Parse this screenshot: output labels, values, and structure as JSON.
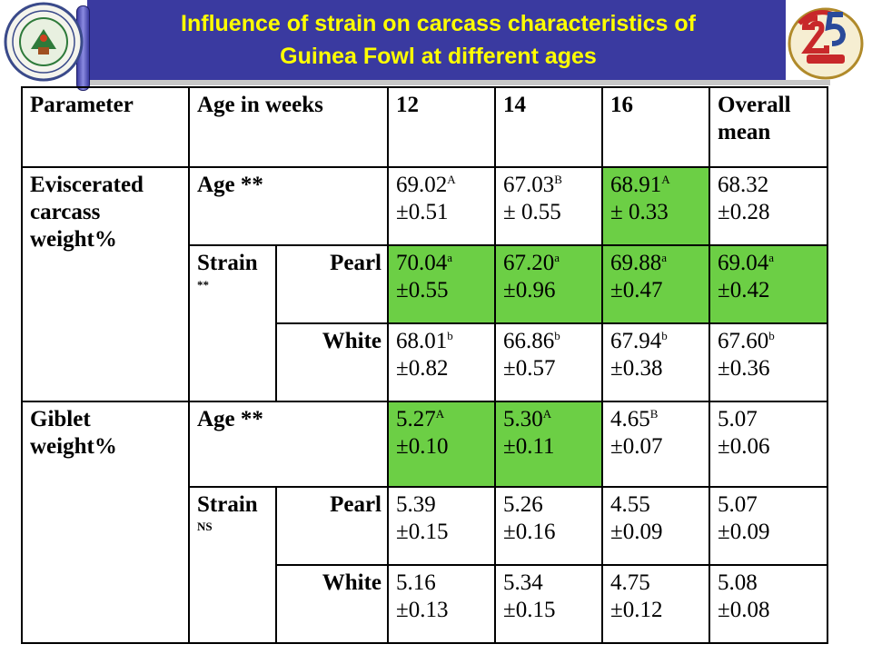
{
  "title": {
    "line1": "Influence of strain on carcass characteristics of",
    "line2": "Guinea Fowl at different ages"
  },
  "colors": {
    "header": "#3a3aa0",
    "title_text": "#ffff00",
    "highlight": "#6ccf45"
  },
  "logos": {
    "left": "university-seal",
    "right": "silver-jubilee-25-logo"
  },
  "table": {
    "headers": [
      "Parameter",
      "Age in weeks",
      "12",
      "14",
      "16",
      "Overall mean"
    ],
    "sections": [
      {
        "parameter": "Eviscerated carcass weight%",
        "age_row": {
          "label": "Age **",
          "cells": [
            {
              "v": "69.02",
              "sup": "A",
              "pm": "±0.51"
            },
            {
              "v": "67.03",
              "sup": "B",
              "pm": "± 0.55"
            },
            {
              "v": "68.91",
              "sup": "A",
              "pm": "± 0.33"
            },
            {
              "v": "68.32",
              "sup": "",
              "pm": "±0.28"
            }
          ]
        },
        "strain_label": "Strain",
        "strain_sig": "**",
        "strains": [
          {
            "name": "Pearl",
            "cells": [
              {
                "v": "70.04",
                "sup": "a",
                "pm": "±0.55"
              },
              {
                "v": "67.20",
                "sup": "a",
                "pm": "±0.96"
              },
              {
                "v": "69.88",
                "sup": "a",
                "pm": "±0.47"
              },
              {
                "v": "69.04",
                "sup": "a",
                "pm": "±0.42"
              }
            ]
          },
          {
            "name": "White",
            "cells": [
              {
                "v": "68.01",
                "sup": "b",
                "pm": "±0.82"
              },
              {
                "v": "66.86",
                "sup": "b",
                "pm": "±0.57"
              },
              {
                "v": "67.94",
                "sup": "b",
                "pm": "±0.38"
              },
              {
                "v": "67.60",
                "sup": "b",
                "pm": "±0.36"
              }
            ]
          }
        ]
      },
      {
        "parameter": "Giblet weight%",
        "age_row": {
          "label": "Age **",
          "cells": [
            {
              "v": "5.27",
              "sup": "A",
              "pm": "±0.10"
            },
            {
              "v": "5.30",
              "sup": "A",
              "pm": "±0.11"
            },
            {
              "v": "4.65",
              "sup": "B",
              "pm": "±0.07"
            },
            {
              "v": "5.07",
              "sup": "",
              "pm": "±0.06"
            }
          ]
        },
        "strain_label": "Strain",
        "strain_sig": "NS",
        "strains": [
          {
            "name": "Pearl",
            "cells": [
              {
                "v": "5.39",
                "sup": "",
                "pm": "±0.15"
              },
              {
                "v": "5.26",
                "sup": "",
                "pm": "±0.16"
              },
              {
                "v": "4.55",
                "sup": "",
                "pm": "±0.09"
              },
              {
                "v": "5.07",
                "sup": "",
                "pm": "±0.09"
              }
            ]
          },
          {
            "name": "White",
            "cells": [
              {
                "v": "5.16",
                "sup": "",
                "pm": "±0.13"
              },
              {
                "v": "5.34",
                "sup": "",
                "pm": "±0.15"
              },
              {
                "v": "4.75",
                "sup": "",
                "pm": "±0.12"
              },
              {
                "v": "5.08",
                "sup": "",
                "pm": "±0.08"
              }
            ]
          }
        ]
      }
    ]
  }
}
